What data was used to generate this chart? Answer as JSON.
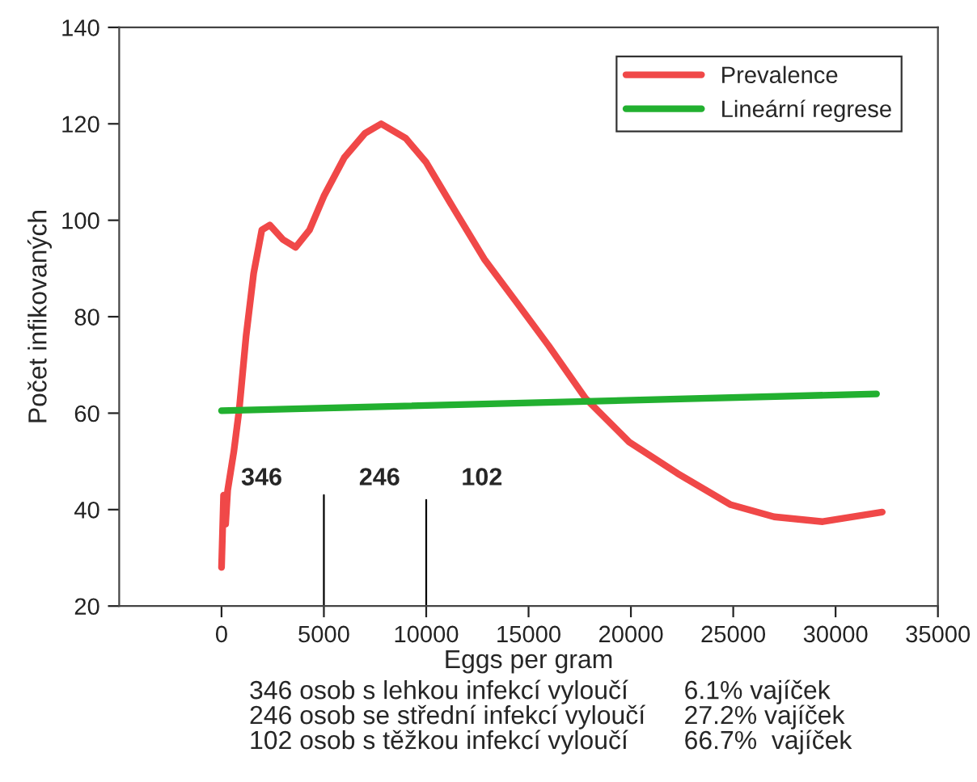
{
  "chart_data": {
    "type": "line",
    "xlabel": "Eggs per gram",
    "ylabel": "Počet infikovaných",
    "xlim": [
      -5000,
      35000
    ],
    "xticks": [
      0,
      5000,
      10000,
      15000,
      20000,
      25000,
      30000,
      35000
    ],
    "ylim": [
      20,
      140
    ],
    "yticks": [
      20,
      40,
      60,
      80,
      100,
      120,
      140
    ],
    "grid": false,
    "legend": "top right",
    "marker": "none",
    "line_style": "solid",
    "series": [
      {
        "name": "Prevalence",
        "color": "#f04848",
        "x": [
          0,
          100,
          200,
          300,
          600,
          870,
          1200,
          1570,
          1970,
          2360,
          3000,
          3620,
          4300,
          5000,
          6000,
          7000,
          7800,
          9000,
          10000,
          11260,
          12830,
          14410,
          15980,
          17800,
          19920,
          22280,
          24880,
          27000,
          29370,
          32280
        ],
        "values": [
          28,
          43,
          37,
          44,
          52,
          61,
          76,
          89,
          98,
          99,
          96,
          94.4,
          98,
          105,
          113,
          118,
          120,
          117,
          112,
          103,
          92,
          83,
          74,
          63,
          54,
          47.5,
          41,
          38.5,
          37.5,
          39.5
        ]
      },
      {
        "name": "Lineární regrese",
        "color": "#22b030",
        "x": [
          0,
          32000
        ],
        "values": [
          60.5,
          64
        ]
      },
      {
        "color": "#000000",
        "x": [
          5000,
          5000
        ],
        "values": [
          20,
          43
        ]
      },
      {
        "color": "#000000",
        "x": [
          10000,
          10000
        ],
        "values": [
          20,
          42
        ]
      }
    ],
    "annotations": [
      "346",
      "246",
      "102",
      "346 osob s lehkou infekcí vyloučí",
      "246 osob se střední infekcí vyloučí",
      "102 osob s těžkou infekcí vyloučí",
      "6.1% vajíček",
      "27.2% vajíček",
      "66.7%  vajíček"
    ]
  }
}
